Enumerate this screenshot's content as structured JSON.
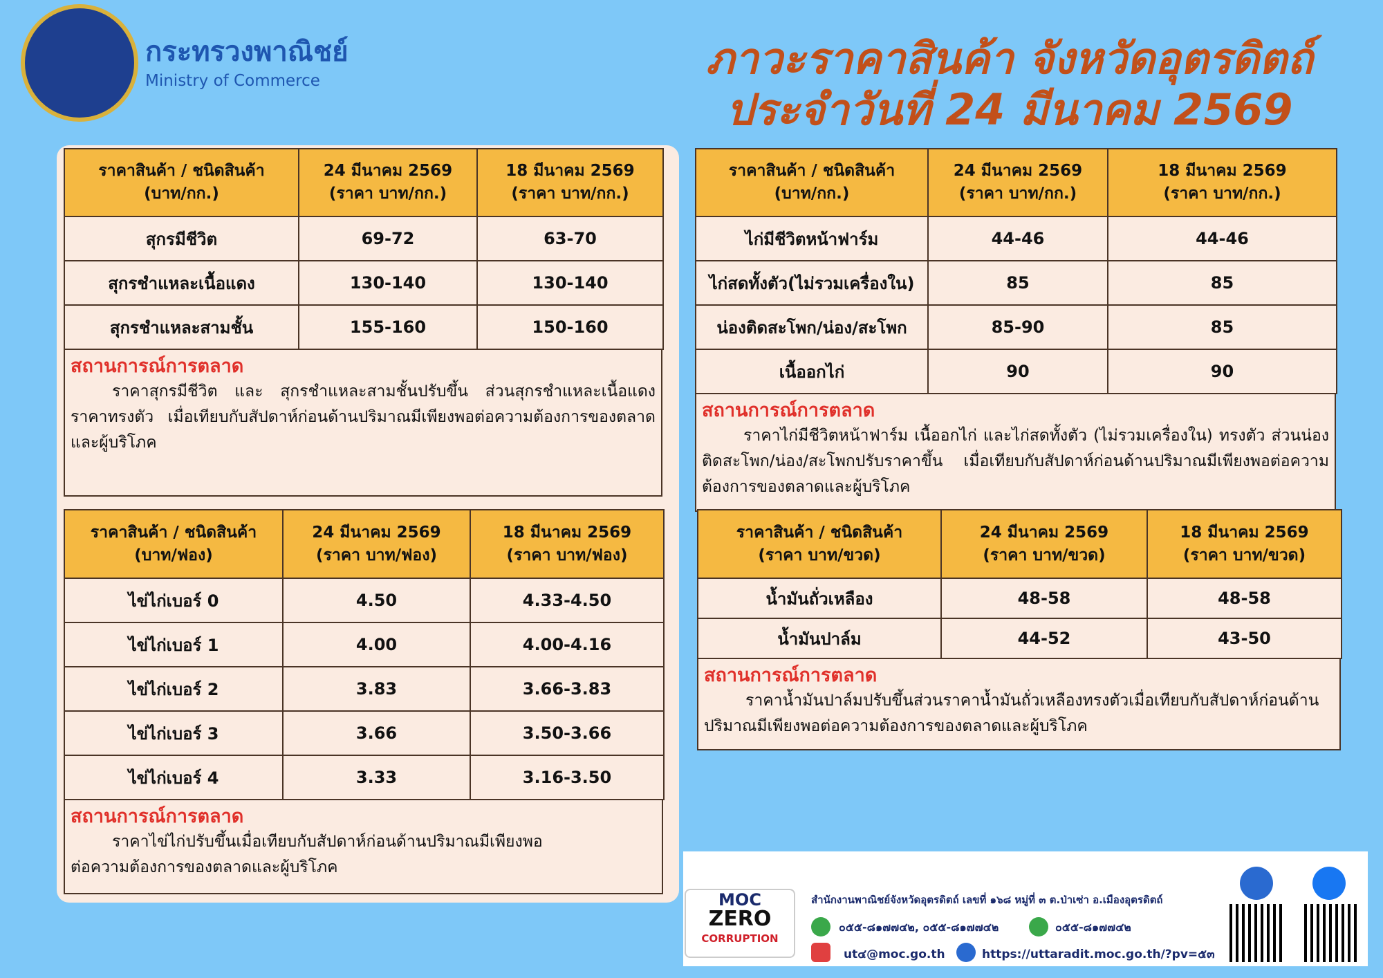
{
  "header": {
    "ministry_th": "กระทรวงพาณิชย์",
    "ministry_en": "Ministry of Commerce",
    "title_line1": "ภาวะราคาสินค้า จังหวัดอุตรดิตถ์",
    "title_line2": "ประจำวันที่  24 มีนาคม 2569"
  },
  "tables": [
    {
      "headers": [
        [
          "ราคาสินค้า / ชนิดสินค้า",
          "(บาท/กก.)"
        ],
        [
          "24 มีนาคม 2569",
          "(ราคา บาท/กก.)"
        ],
        [
          "18 มีนาคม 2569",
          "(ราคา บาท/กก.)"
        ]
      ],
      "rows": [
        [
          "สุกรมีชีวิต",
          "69-72",
          "63-70"
        ],
        [
          "สุกรชำแหละเนื้อแดง",
          "130-140",
          "130-140"
        ],
        [
          "สุกรชำแหละสามชั้น",
          "155-160",
          "150-160"
        ]
      ],
      "situation_title": "สถานการณ์การตลาด",
      "situation_text": "ราคาสุกรมีชีวิต และ สุกรชำแหละสามชั้นปรับขึ้น  ส่วนสุกรชำแหละเนื้อแดงราคาทรงตัว เมื่อเทียบกับสัปดาห์ก่อนด้านปริมาณมีเพียงพอต่อความต้องการของตลาดและผู้บริโภค"
    },
    {
      "headers": [
        [
          "ราคาสินค้า / ชนิดสินค้า",
          "(บาท/ฟอง)"
        ],
        [
          "24 มีนาคม 2569",
          "(ราคา บาท/ฟอง)"
        ],
        [
          "18 มีนาคม 2569",
          "(ราคา บาท/ฟอง)"
        ]
      ],
      "rows": [
        [
          "ไข่ไก่เบอร์ 0",
          "4.50",
          "4.33-4.50"
        ],
        [
          "ไข่ไก่เบอร์ 1",
          "4.00",
          "4.00-4.16"
        ],
        [
          "ไข่ไก่เบอร์ 2",
          "3.83",
          "3.66-3.83"
        ],
        [
          "ไข่ไก่เบอร์ 3",
          "3.66",
          "3.50-3.66"
        ],
        [
          "ไข่ไก่เบอร์ 4",
          "3.33",
          "3.16-3.50"
        ]
      ],
      "situation_title": "สถานการณ์การตลาด",
      "situation_text": "ราคาไข่ไก่ปรับขึ้นเมื่อเทียบกับสัปดาห์ก่อนด้านปริมาณมีเพียงพอต่อความต้องการของตลาดและผู้บริโภค"
    },
    {
      "headers": [
        [
          "ราคาสินค้า / ชนิดสินค้า",
          "(บาท/กก.)"
        ],
        [
          "24 มีนาคม 2569",
          "(ราคา บาท/กก.)"
        ],
        [
          "18 มีนาคม 2569",
          "(ราคา บาท/กก.)"
        ]
      ],
      "rows": [
        [
          "ไก่มีชีวิตหน้าฟาร์ม",
          "44-46",
          "44-46"
        ],
        [
          "ไก่สดทั้งตัว(ไม่รวมเครื่องใน)",
          "85",
          "85"
        ],
        [
          "น่องติดสะโพก/น่อง/สะโพก",
          "85-90",
          "85"
        ],
        [
          "เนื้ออกไก่",
          "90",
          "90"
        ]
      ],
      "situation_title": "สถานการณ์การตลาด",
      "situation_text": "ราคาไก่มีชีวิตหน้าฟาร์ม  เนื้ออกไก่  และไก่สดทั้งตัว (ไม่รวมเครื่องใน) ทรงตัว ส่วนน่องติดสะโพก/น่อง/สะโพกปรับราคาขึ้น  เมื่อเทียบกับสัปดาห์ก่อนด้านปริมาณมีเพียงพอต่อความต้องการของตลาดและผู้บริโภค"
    },
    {
      "headers": [
        [
          "ราคาสินค้า / ชนิดสินค้า",
          "(ราคา บาท/ขวด)"
        ],
        [
          "24 มีนาคม 2569",
          "(ราคา บาท/ขวด)"
        ],
        [
          "18 มีนาคม 2569",
          "(ราคา บาท/ขวด)"
        ]
      ],
      "rows": [
        [
          "น้ำมันถั่วเหลือง",
          "48-58",
          "48-58"
        ],
        [
          "น้ำมันปาล์ม",
          "44-52",
          "43-50"
        ]
      ],
      "situation_title": "สถานการณ์การตลาด",
      "situation_text": "ราคาน้ำมันปาล์มปรับขึ้นส่วนราคาน้ำมันถั่วเหลืองทรงตัวเมื่อเทียบกับสัปดาห์ก่อนด้านปริมาณมีเพียงพอต่อความต้องการของตลาดและผู้บริโภค"
    }
  ],
  "footer": {
    "logo": [
      "MOC",
      "ZERO",
      "CORRUPTION"
    ],
    "address": "สำนักงานพาณิชย์จังหวัดอุตรดิตถ์ เลขที่ ๑๖๘ หมู่ที่ ๓ ต.ป่าเซ่า อ.เมืองอุตรดิตถ์",
    "phones": "๐๕๕-๘๑๗๗๔๒, ๐๕๕-๘๑๗๗๔๒",
    "fax": "๐๕๕-๘๑๗๗๔๒",
    "email": "ut๔@moc.go.th",
    "website": "https://uttaradit.moc.go.th/?pv=๕๓"
  }
}
